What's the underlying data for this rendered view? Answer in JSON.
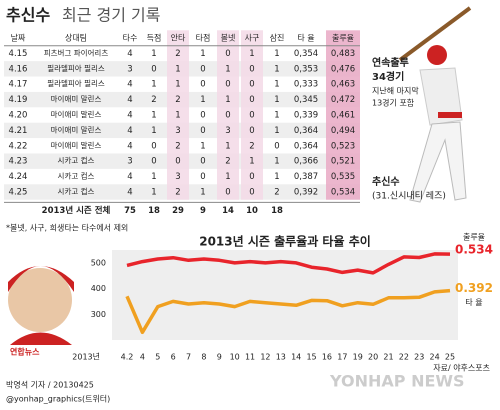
{
  "header": {
    "title_name": "추신수",
    "title_rest": "최근 경기 기록"
  },
  "table": {
    "columns": [
      "날짜",
      "상대팀",
      "타수",
      "득점",
      "안타",
      "타점",
      "볼넷",
      "사구",
      "삼진",
      "타 율",
      "출루율"
    ],
    "rows": [
      [
        "4.15",
        "피츠버그 파이어리츠",
        "4",
        "1",
        "2",
        "1",
        "0",
        "1",
        "1",
        "0,354",
        "0,483"
      ],
      [
        "4.16",
        "필라델피아 필리스",
        "3",
        "0",
        "1",
        "0",
        "1",
        "0",
        "1",
        "0,353",
        "0,476"
      ],
      [
        "4.17",
        "필라델피아 필리스",
        "4",
        "1",
        "1",
        "0",
        "0",
        "0",
        "1",
        "0,333",
        "0,463"
      ],
      [
        "4.19",
        "마이애미 말린스",
        "4",
        "2",
        "2",
        "1",
        "1",
        "0",
        "1",
        "0,345",
        "0,472"
      ],
      [
        "4.20",
        "마이애미 말린스",
        "4",
        "1",
        "1",
        "0",
        "0",
        "0",
        "1",
        "0,339",
        "0,461"
      ],
      [
        "4.21",
        "마이애미 말린스",
        "4",
        "1",
        "3",
        "0",
        "3",
        "0",
        "1",
        "0,364",
        "0,494"
      ],
      [
        "4.22",
        "마이애미 말린스",
        "4",
        "0",
        "2",
        "1",
        "1",
        "2",
        "0",
        "0,364",
        "0,523"
      ],
      [
        "4.23",
        "시카고 컵스",
        "3",
        "0",
        "0",
        "0",
        "2",
        "1",
        "1",
        "0,366",
        "0,521"
      ],
      [
        "4.24",
        "시카고 컵스",
        "4",
        "1",
        "3",
        "0",
        "1",
        "0",
        "1",
        "0,387",
        "0,535"
      ],
      [
        "4.25",
        "시카고 컵스",
        "4",
        "1",
        "2",
        "1",
        "0",
        "0",
        "2",
        "0,392",
        "0,534"
      ]
    ],
    "total_label": "2013년 시즌 전체",
    "totals": [
      "75",
      "18",
      "29",
      "9",
      "14",
      "10",
      "18"
    ],
    "footnote": "*볼넷, 사구, 희생타는 타수에서 제외"
  },
  "profile": {
    "streak_title": "연속출루",
    "streak_count": "34경기",
    "streak_note1": "지난해 마지막",
    "streak_note2": "13경기 포함",
    "name": "추신수",
    "team": "(31.신시내티 레즈)"
  },
  "chart_data": {
    "type": "line",
    "title": "2013년 시즌 출루율과 타율 추이",
    "x_prefix": "2013년",
    "categories": [
      "4.2",
      "4",
      "5",
      "6",
      "7",
      "8",
      "9",
      "10",
      "11",
      "12",
      "13",
      "14",
      "15",
      "16",
      "17",
      "19",
      "20",
      "21",
      "22",
      "23",
      "24",
      "25"
    ],
    "series": [
      {
        "name": "출루율",
        "end_label": "0.534",
        "color": "#e8242b",
        "values": [
          490,
          505,
          515,
          520,
          510,
          515,
          510,
          500,
          505,
          500,
          505,
          500,
          483,
          476,
          463,
          472,
          461,
          494,
          523,
          521,
          535,
          534
        ]
      },
      {
        "name": "타 율",
        "end_label": "0.392",
        "color": "#f0a020",
        "values": [
          370,
          230,
          330,
          350,
          340,
          345,
          340,
          330,
          350,
          345,
          340,
          335,
          354,
          353,
          333,
          345,
          339,
          364,
          364,
          366,
          387,
          392
        ]
      }
    ],
    "ylim": [
      200,
      550
    ],
    "yticks": [
      300,
      400,
      500
    ]
  },
  "footer": {
    "reporter": "박영석 기자 / 20130425",
    "twitter": "@yonhap_graphics(트위터)",
    "source": "자료/ 야후스포츠",
    "logo": "연합뉴스",
    "watermark": "YONHAP NEWS"
  }
}
